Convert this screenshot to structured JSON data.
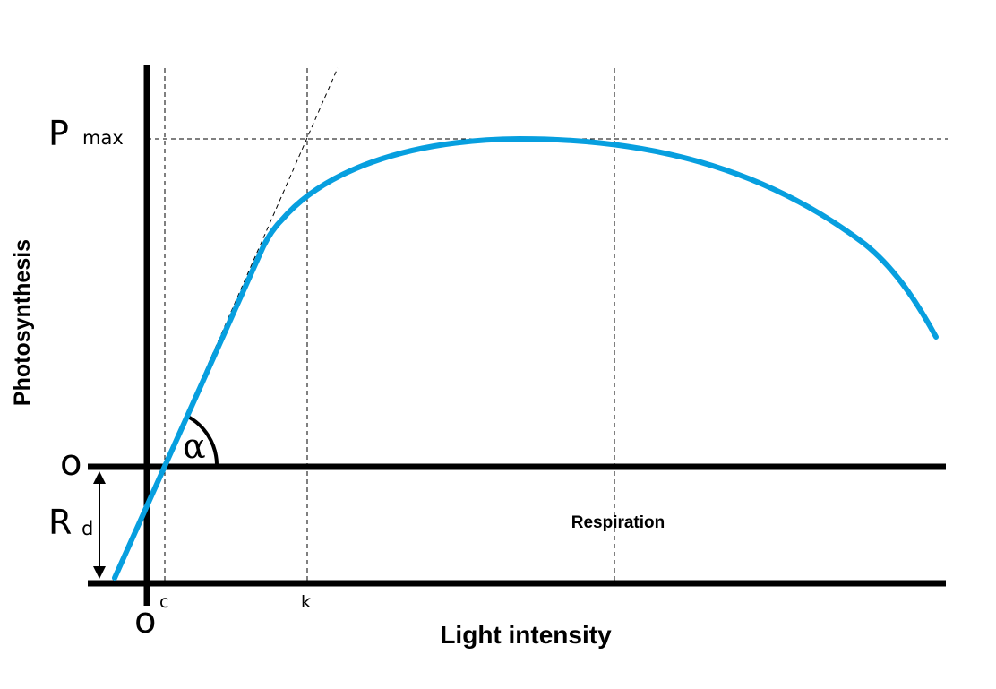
{
  "diagram": {
    "y_axis_label": "Photosynthesis",
    "x_axis_label": "Light intensity",
    "pmax_symbol": "P",
    "pmax_subscript": "max",
    "zero_upper": "o",
    "zero_lower": "o",
    "rd_symbol": "R",
    "rd_subscript": "d",
    "alpha_symbol": "α",
    "c_label": "c",
    "k_label": "k",
    "respiration_label": "Respiration"
  },
  "colors": {
    "curve": "#079FDF",
    "axis": "#000000",
    "guide": "#000000"
  }
}
